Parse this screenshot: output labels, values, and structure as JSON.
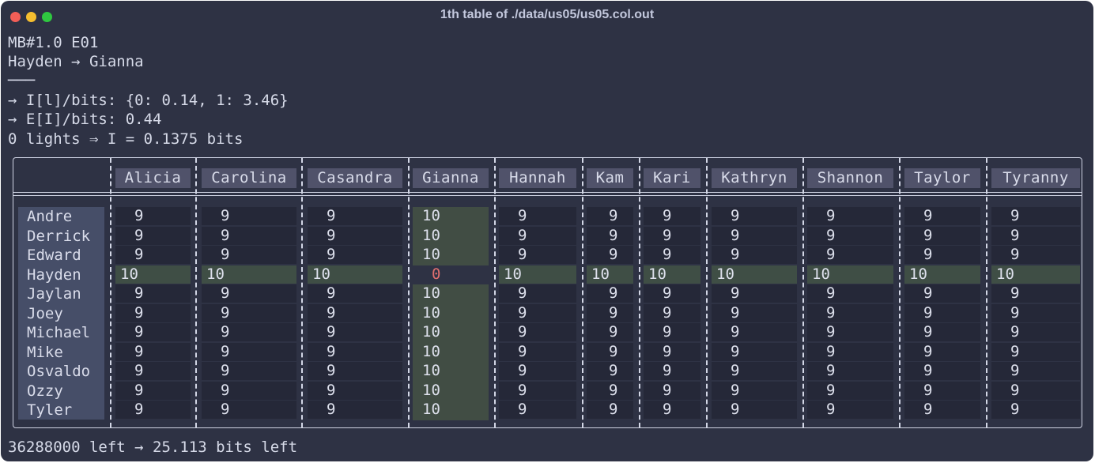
{
  "window": {
    "title": "1th table of ./data/us05/us05.col.out"
  },
  "output": {
    "line1": "MB#1.0 E01",
    "line2": "Hayden → Gianna",
    "line3": "───",
    "line4": "→ I[l]/bits: {0: 0.14, 1: 3.46}",
    "line5": "→ E[I]/bits: 0.44",
    "line6": "0 lights ⇒ I = 0.1375 bits",
    "footer": "36288000 left → 25.113 bits left"
  },
  "table": {
    "columns": [
      "Alicia",
      "Carolina",
      "Casandra",
      "Gianna",
      "Hannah",
      "Kam",
      "Kari",
      "Kathryn",
      "Shannon",
      "Taylor",
      "Tyranny"
    ],
    "rows": [
      {
        "name": "Andre",
        "values": [
          "9",
          "9",
          "9",
          "10",
          "9",
          "9",
          "9",
          "9",
          "9",
          "9",
          "9"
        ]
      },
      {
        "name": "Derrick",
        "values": [
          "9",
          "9",
          "9",
          "10",
          "9",
          "9",
          "9",
          "9",
          "9",
          "9",
          "9"
        ]
      },
      {
        "name": "Edward",
        "values": [
          "9",
          "9",
          "9",
          "10",
          "9",
          "9",
          "9",
          "9",
          "9",
          "9",
          "9"
        ]
      },
      {
        "name": "Hayden",
        "values": [
          "10",
          "10",
          "10",
          "0",
          "10",
          "10",
          "10",
          "10",
          "10",
          "10",
          "10"
        ]
      },
      {
        "name": "Jaylan",
        "values": [
          "9",
          "9",
          "9",
          "10",
          "9",
          "9",
          "9",
          "9",
          "9",
          "9",
          "9"
        ]
      },
      {
        "name": "Joey",
        "values": [
          "9",
          "9",
          "9",
          "10",
          "9",
          "9",
          "9",
          "9",
          "9",
          "9",
          "9"
        ]
      },
      {
        "name": "Michael",
        "values": [
          "9",
          "9",
          "9",
          "10",
          "9",
          "9",
          "9",
          "9",
          "9",
          "9",
          "9"
        ]
      },
      {
        "name": "Mike",
        "values": [
          "9",
          "9",
          "9",
          "10",
          "9",
          "9",
          "9",
          "9",
          "9",
          "9",
          "9"
        ]
      },
      {
        "name": "Osvaldo",
        "values": [
          "9",
          "9",
          "9",
          "10",
          "9",
          "9",
          "9",
          "9",
          "9",
          "9",
          "9"
        ]
      },
      {
        "name": "Ozzy",
        "values": [
          "9",
          "9",
          "9",
          "10",
          "9",
          "9",
          "9",
          "9",
          "9",
          "9",
          "9"
        ]
      },
      {
        "name": "Tyler",
        "values": [
          "9",
          "9",
          "9",
          "10",
          "9",
          "9",
          "9",
          "9",
          "9",
          "9",
          "9"
        ]
      }
    ],
    "highlight": {
      "row": "Hayden",
      "column": "Gianna"
    }
  },
  "colors": {
    "background": "#2e3244",
    "header_cell": "#50526a",
    "row_label_bg": "#464e68",
    "cell_dark": "#252838",
    "cell_green": "#414d44",
    "zero_value": "#e06f6f"
  }
}
